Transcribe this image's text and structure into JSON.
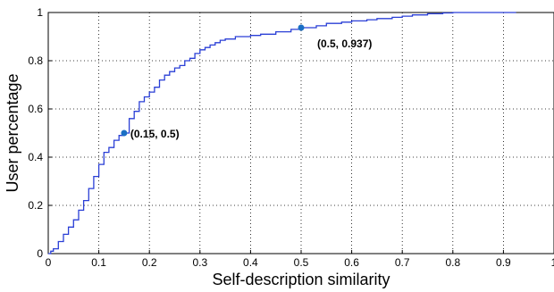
{
  "chart_data": {
    "type": "line",
    "title": "",
    "xlabel": "Self-description similarity",
    "ylabel": "User percentage",
    "xlim": [
      0,
      1
    ],
    "ylim": [
      0,
      1
    ],
    "xticks": [
      "0",
      "0.1",
      "0.2",
      "0.3",
      "0.4",
      "0.5",
      "0.6",
      "0.7",
      "0.8",
      "0.9",
      "1"
    ],
    "yticks": [
      "0",
      "0.2",
      "0.4",
      "0.6",
      "0.8",
      "1"
    ],
    "grid": true,
    "colors": {
      "line": "#2a3fd6",
      "marker": "#1a6fc4"
    },
    "series": [
      {
        "x": [
          0,
          0.005,
          0.01,
          0.02,
          0.03,
          0.04,
          0.05,
          0.06,
          0.07,
          0.08,
          0.09,
          0.1,
          0.11,
          0.12,
          0.13,
          0.14,
          0.15,
          0.16,
          0.17,
          0.18,
          0.19,
          0.2,
          0.21,
          0.22,
          0.23,
          0.24,
          0.25,
          0.26,
          0.27,
          0.28,
          0.29,
          0.3,
          0.31,
          0.32,
          0.33,
          0.34,
          0.35,
          0.37,
          0.4,
          0.42,
          0.45,
          0.48,
          0.5,
          0.53,
          0.55,
          0.58,
          0.6,
          0.63,
          0.65,
          0.68,
          0.7,
          0.72,
          0.75,
          0.78,
          0.8,
          0.85,
          0.9,
          0.925
        ],
        "y": [
          0,
          0.01,
          0.02,
          0.05,
          0.08,
          0.11,
          0.14,
          0.18,
          0.22,
          0.27,
          0.32,
          0.37,
          0.42,
          0.44,
          0.47,
          0.49,
          0.5,
          0.56,
          0.59,
          0.63,
          0.65,
          0.67,
          0.69,
          0.72,
          0.74,
          0.755,
          0.77,
          0.78,
          0.8,
          0.81,
          0.83,
          0.845,
          0.855,
          0.865,
          0.875,
          0.885,
          0.89,
          0.9,
          0.905,
          0.91,
          0.92,
          0.93,
          0.937,
          0.945,
          0.955,
          0.96,
          0.965,
          0.97,
          0.975,
          0.98,
          0.985,
          0.99,
          0.995,
          0.998,
          1.0,
          1.0,
          1.0,
          1.0
        ]
      }
    ],
    "annotations": [
      {
        "x": 0.15,
        "y": 0.5,
        "label": "(0.15, 0.5)"
      },
      {
        "x": 0.5,
        "y": 0.937,
        "label": "(0.5, 0.937)"
      }
    ]
  }
}
